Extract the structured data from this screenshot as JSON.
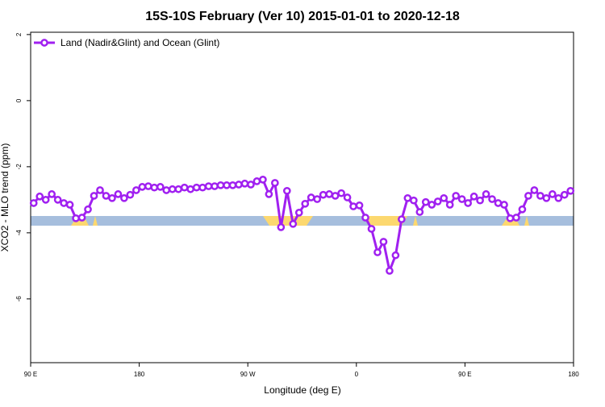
{
  "chart_data": {
    "type": "line",
    "title": "15S-10S February (Ver 10)   2015-01-01 to 2020-12-18",
    "xlabel": "Longitude (deg E)",
    "ylabel": "XCO2 - MLO trend (ppm)",
    "x": [
      92.5,
      97.5,
      102.5,
      107.5,
      112.5,
      117.5,
      122.5,
      127.5,
      132.5,
      137.5,
      142.5,
      147.5,
      152.5,
      157.5,
      162.5,
      167.5,
      172.5,
      177.5,
      182.5,
      187.5,
      192.5,
      197.5,
      202.5,
      207.5,
      212.5,
      217.5,
      222.5,
      227.5,
      232.5,
      237.5,
      242.5,
      247.5,
      252.5,
      257.5,
      262.5,
      267.5,
      272.5,
      277.5,
      282.5,
      287.5,
      292.5,
      297.5,
      302.5,
      307.5,
      312.5,
      317.5,
      322.5,
      327.5,
      332.5,
      337.5,
      342.5,
      347.5,
      352.5,
      357.5,
      362.5,
      367.5,
      372.5,
      377.5,
      382.5,
      387.5,
      392.5,
      397.5,
      402.5,
      407.5,
      412.5,
      417.5,
      422.5,
      427.5,
      432.5,
      437.5,
      442.5,
      447.5,
      452.5,
      457.5,
      462.5,
      467.5,
      472.5,
      477.5,
      482.5,
      487.5,
      492.5,
      497.5,
      502.5,
      507.5,
      512.5,
      517.5,
      522.5,
      527.5,
      532.5,
      537.5
    ],
    "series": [
      {
        "name": "Land (Nadir&Glint) and Ocean (Glint)",
        "color": "#a020f0",
        "values": [
          -3.1,
          -2.9,
          -3.0,
          -2.83,
          -3.0,
          -3.1,
          -3.15,
          -3.56,
          -3.54,
          -3.29,
          -2.88,
          -2.71,
          -2.88,
          -2.95,
          -2.83,
          -2.95,
          -2.85,
          -2.71,
          -2.61,
          -2.59,
          -2.63,
          -2.61,
          -2.71,
          -2.68,
          -2.68,
          -2.63,
          -2.68,
          -2.63,
          -2.63,
          -2.59,
          -2.59,
          -2.56,
          -2.56,
          -2.56,
          -2.54,
          -2.51,
          -2.54,
          -2.44,
          -2.39,
          -2.83,
          -2.49,
          -3.83,
          -2.73,
          -3.73,
          -3.39,
          -3.12,
          -2.93,
          -2.98,
          -2.85,
          -2.83,
          -2.88,
          -2.8,
          -2.93,
          -3.2,
          -3.17,
          -3.54,
          -3.88,
          -4.59,
          -4.27,
          -5.15,
          -4.68,
          -3.59,
          -2.95,
          -3.02,
          -3.37,
          -3.07,
          -3.15,
          -3.05,
          -2.95,
          -3.15,
          -2.88,
          -2.98,
          -3.1,
          -2.9,
          -3.02,
          -2.83,
          -2.98,
          -3.1,
          -3.15,
          -3.56,
          -3.54,
          -3.29,
          -2.88,
          -2.71,
          -2.88,
          -2.95,
          -2.83,
          -2.95,
          -2.85,
          -2.73
        ]
      }
    ],
    "xlim": [
      90,
      540
    ],
    "xticks": [
      {
        "value": 90,
        "label": "90 E"
      },
      {
        "value": 180,
        "label": "180"
      },
      {
        "value": 270,
        "label": "90 W"
      },
      {
        "value": 360,
        "label": "0"
      },
      {
        "value": 450,
        "label": "90 E"
      },
      {
        "value": 540,
        "label": "180"
      }
    ],
    "ylim": [
      -7.93,
      2.07
    ],
    "yticks": [
      -6,
      -4,
      -2,
      0,
      2
    ],
    "legend": "top-left"
  }
}
